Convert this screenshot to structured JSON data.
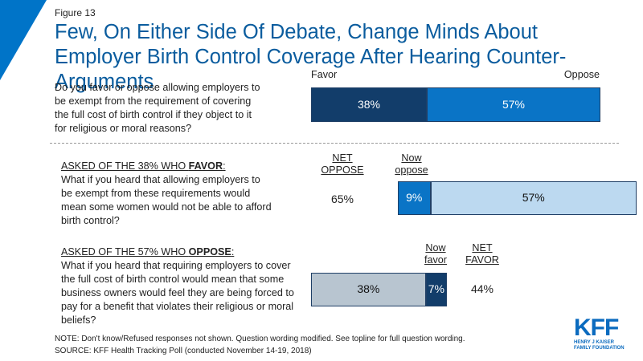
{
  "header": {
    "figure_label": "Figure 13",
    "title": "Few, On Either Side Of Debate, Change Minds About Employer Birth Control Coverage After Hearing Counter-Arguments"
  },
  "section1": {
    "question": "Do you favor or oppose allowing employers to be exempt from the requirement of covering the full cost of birth control if they object to it for religious or moral reasons?",
    "favor_label": "Favor",
    "oppose_label": "Oppose"
  },
  "section2": {
    "asked_prefix": "ASKED OF THE 38% WHO ",
    "asked_group": "FAVOR",
    "asked_suffix": ":",
    "question": "What if you heard that allowing employers to be exempt from these requirements would mean some women would not be able to afford birth control?",
    "net_label_line1": "NET",
    "net_label_line2": "OPPOSE",
    "net_value": "65%",
    "now_label_line1": "Now",
    "now_label_line2": "oppose"
  },
  "section3": {
    "asked_prefix": "ASKED OF THE 57% WHO ",
    "asked_group": "OPPOSE",
    "asked_suffix": ":",
    "question": "What if you heard that requiring employers to cover the full cost of birth control would mean that some business owners would feel they are being forced to pay for a benefit that violates their religious or moral beliefs?",
    "now_label_line1": "Now",
    "now_label_line2": "favor",
    "net_label_line1": "NET",
    "net_label_line2": "FAVOR",
    "net_value": "44%"
  },
  "chart_data": [
    {
      "type": "bar",
      "orientation": "horizontal-stacked",
      "series": [
        {
          "name": "Favor",
          "value": 38,
          "label": "38%",
          "color": "#123d6a"
        },
        {
          "name": "Oppose",
          "value": 57,
          "label": "57%",
          "color": "#0a74c6"
        }
      ]
    },
    {
      "type": "bar",
      "orientation": "horizontal-stacked",
      "series": [
        {
          "name": "Now oppose",
          "value": 9,
          "label": "9%",
          "color": "#0a74c6"
        },
        {
          "value": 57,
          "label": "57%",
          "color": "#bcd9f0"
        }
      ]
    },
    {
      "type": "bar",
      "orientation": "horizontal-stacked",
      "series": [
        {
          "value": 38,
          "label": "38%",
          "color": "#b8c5d0"
        },
        {
          "name": "Now favor",
          "value": 7,
          "label": "7%",
          "color": "#123d6a"
        }
      ]
    }
  ],
  "footer": {
    "note": "NOTE: Don't know/Refused  responses not shown. Question wording modified. See topline for full question wording.",
    "source": "SOURCE: KFF Health Tracking Poll (conducted November 14-19, 2018)",
    "logo_text": "KFF",
    "logo_sub_line1": "HENRY J KAISER",
    "logo_sub_line2": "FAMILY FOUNDATION"
  }
}
